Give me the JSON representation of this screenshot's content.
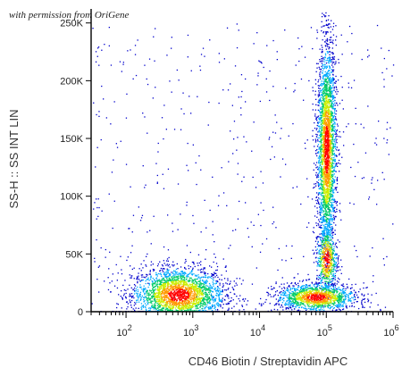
{
  "watermark": "with permission from OriGene",
  "chart_data": {
    "type": "scatter",
    "title": "",
    "xlabel": "CD46 Biotin / Streptavidin APC",
    "ylabel": "SS-H :: SS INT LIN",
    "x_scale": "log",
    "x_range": [
      30,
      1000000
    ],
    "y_range": [
      0,
      262144
    ],
    "x_ticks": [
      {
        "value": 100,
        "base": "10",
        "exp": "2"
      },
      {
        "value": 1000,
        "base": "10",
        "exp": "3"
      },
      {
        "value": 10000,
        "base": "10",
        "exp": "4"
      },
      {
        "value": 100000,
        "base": "10",
        "exp": "5"
      },
      {
        "value": 1000000,
        "base": "10",
        "exp": "6"
      }
    ],
    "y_ticks": [
      {
        "value": 0,
        "label": "0"
      },
      {
        "value": 50000,
        "label": "50K"
      },
      {
        "value": 100000,
        "label": "100K"
      },
      {
        "value": 150000,
        "label": "150K"
      },
      {
        "value": 200000,
        "label": "200K"
      },
      {
        "value": 250000,
        "label": "250K"
      }
    ],
    "grid": false,
    "populations": [
      {
        "x_center": 600,
        "y_center": 14000,
        "x_spread_decades": 0.35,
        "y_spread": 12000,
        "n_points": 2600
      },
      {
        "x_center": 70000,
        "y_center": 12000,
        "x_spread_decades": 0.3,
        "y_spread": 6000,
        "n_points": 1400
      },
      {
        "x_center": 100000,
        "y_center": 140000,
        "x_spread_decades": 0.07,
        "y_spread": 45000,
        "n_points": 2800
      },
      {
        "x_center": 100000,
        "y_center": 45000,
        "x_spread_decades": 0.08,
        "y_spread": 15000,
        "n_points": 600
      }
    ],
    "density_colors": [
      "#0000cc",
      "#00aaff",
      "#00cc66",
      "#ccee00",
      "#ff9900",
      "#ff0000"
    ]
  }
}
